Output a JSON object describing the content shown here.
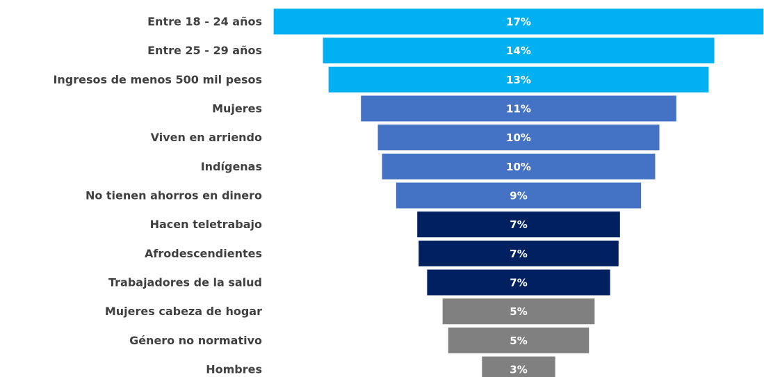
{
  "chart_data": {
    "type": "funnel",
    "categories": [
      "Entre 18 - 24 años",
      "Entre 25 - 29 años",
      "Ingresos de menos 500 mil pesos",
      "Mujeres",
      "Viven en arriendo",
      "Indígenas",
      "No tienen ahorros en dinero",
      "Hacen teletrabajo",
      "Afrodescendientes",
      "Trabajadores de la salud",
      "Mujeres cabeza de hogar",
      "Género no normativo",
      "Hombres"
    ],
    "values": [
      17.4,
      13.9,
      13.5,
      11.2,
      10.0,
      9.7,
      8.7,
      7.2,
      7.1,
      6.5,
      5.4,
      5.0,
      2.6
    ],
    "value_labels": [
      "17%",
      "14%",
      "13%",
      "11%",
      "10%",
      "10%",
      "9%",
      "7%",
      "7%",
      "7%",
      "5%",
      "5%",
      "3%"
    ],
    "colors": [
      "#00b0f0",
      "#00b0f0",
      "#00b0f0",
      "#4472c4",
      "#4472c4",
      "#4472c4",
      "#4472c4",
      "#002060",
      "#002060",
      "#002060",
      "#808080",
      "#808080",
      "#808080"
    ]
  }
}
